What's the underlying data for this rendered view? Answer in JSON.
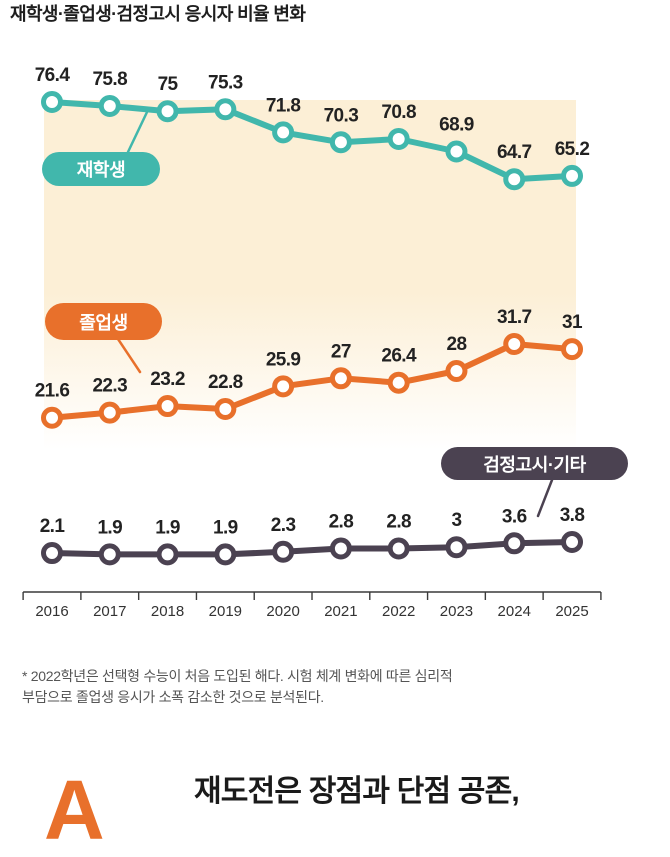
{
  "chart_data": {
    "type": "line",
    "title": "재학생·졸업생·검정고시 응시자 비율 변화",
    "categories": [
      "2016",
      "2017",
      "2018",
      "2019",
      "2020",
      "2021",
      "2022",
      "2023",
      "2024",
      "2025"
    ],
    "series": [
      {
        "name": "재학생",
        "color": "#41b7ac",
        "values": [
          76.4,
          75.8,
          75,
          75.3,
          71.8,
          70.3,
          70.8,
          68.9,
          64.7,
          65.2
        ]
      },
      {
        "name": "졸업생",
        "color": "#e8702b",
        "values": [
          21.6,
          22.3,
          23.2,
          22.8,
          25.9,
          27,
          26.4,
          28,
          31.7,
          31
        ]
      },
      {
        "name": "검정고시·기타",
        "color": "#4b4251",
        "values": [
          2.1,
          1.9,
          1.9,
          1.9,
          2.3,
          2.8,
          2.8,
          3,
          3.6,
          3.8
        ]
      }
    ],
    "data_labels": true,
    "grid": false,
    "y_axis_visible": false
  },
  "panel_color": "#fcefd6",
  "footnote": [
    "* 2022학년은 선택형 수능이 처음 도입된 해다. 시험 체계 변화에 따른 심리적",
    "부담으로 졸업생 응시가 소폭 감소한 것으로 분석된다."
  ],
  "next_section": {
    "marker": "A",
    "heading": "재도전은 장점과 단점 공존,",
    "accent_color": "#e8702b"
  }
}
